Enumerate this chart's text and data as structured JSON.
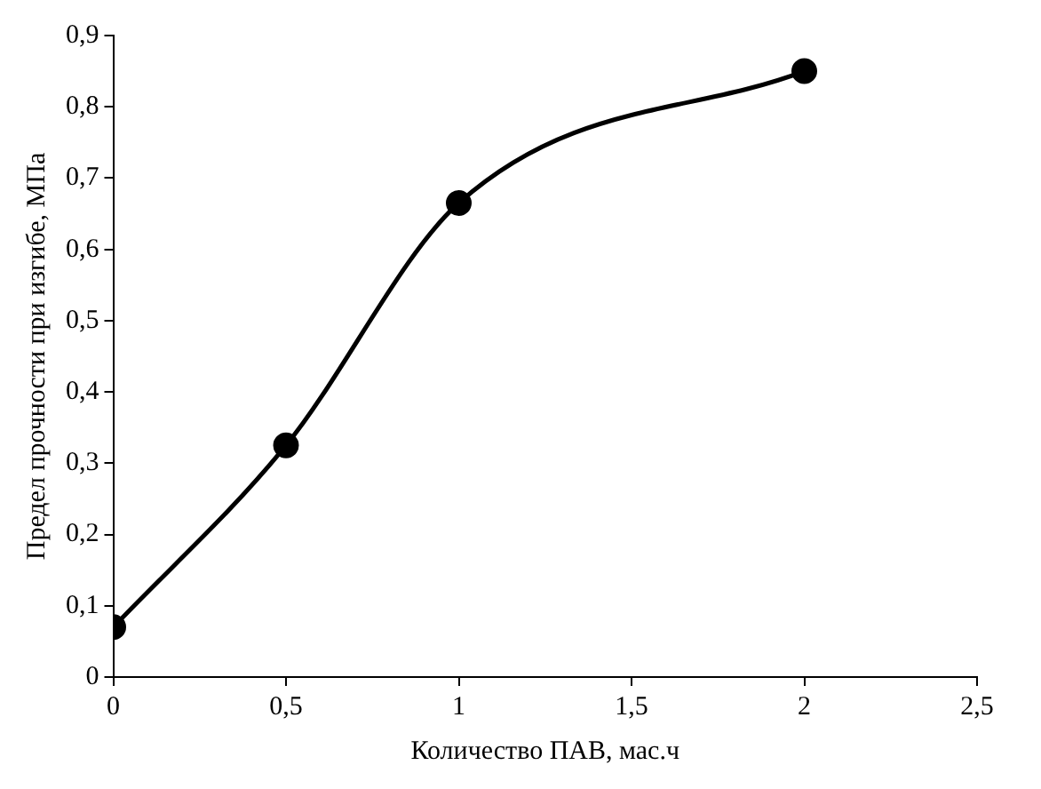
{
  "chart_data": {
    "type": "line",
    "xlabel": "Количество ПАВ, мас.ч",
    "ylabel": "Предел прочности при изгибе, МПа",
    "x": [
      0,
      0.5,
      1,
      2
    ],
    "series": [
      {
        "color": "#000000",
        "values": [
          0.07,
          0.325,
          0.665,
          0.85
        ]
      }
    ],
    "xlim": [
      0,
      2.5
    ],
    "xticks": [
      0,
      {
        "value": 0.5,
        "label": "0,5"
      },
      1,
      {
        "value": 1.5,
        "label": "1,5"
      },
      2,
      {
        "value": 2.5,
        "label": "2,5"
      }
    ],
    "ylim": [
      0,
      0.9
    ],
    "yticks": [
      0,
      {
        "value": 0.1,
        "label": "0,1"
      },
      {
        "value": 0.2,
        "label": "0,2"
      },
      {
        "value": 0.3,
        "label": "0,3"
      },
      {
        "value": 0.4,
        "label": "0,4"
      },
      {
        "value": 0.5,
        "label": "0,5"
      },
      {
        "value": 0.6,
        "label": "0,6"
      },
      {
        "value": 0.7,
        "label": "0,7"
      },
      {
        "value": 0.8,
        "label": "0,8"
      },
      {
        "value": 0.9,
        "label": "0,9"
      }
    ],
    "grid": false,
    "legend": false,
    "marker": "circle",
    "line_style": "solid"
  }
}
